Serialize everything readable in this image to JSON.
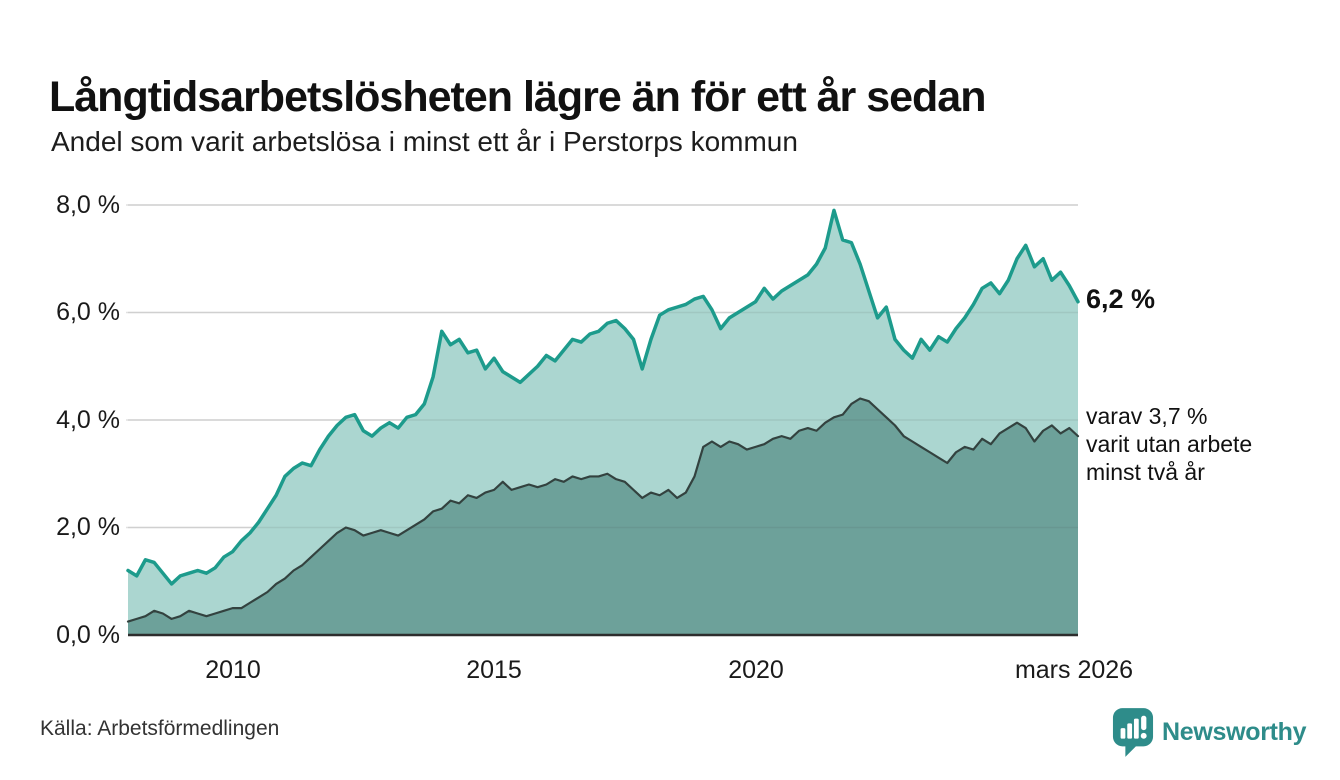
{
  "header": {
    "title": "Långtidsarbetslösheten lägre än för ett år sedan",
    "subtitle": "Andel som varit arbetslösa i minst ett år i Perstorps kommun"
  },
  "annotations": {
    "end_value_main": "6,2 %",
    "secondary_line1": "varav 3,7 %",
    "secondary_line2": "varit utan arbete",
    "secondary_line3": "minst två år"
  },
  "footer": {
    "source": "Källa: Arbetsförmedlingen",
    "logo_text": "Newsworthy"
  },
  "chart_data": {
    "type": "area",
    "title": "Långtidsarbetslösheten lägre än för ett år sedan",
    "subtitle": "Andel som varit arbetslösa i minst ett år i Perstorps kommun",
    "unit": "%",
    "x_start": "2008-01",
    "x_end": "2026-03",
    "interval_months": 2,
    "ylim": [
      0,
      8.4
    ],
    "grid": true,
    "legend_position": "none",
    "grid_color": "#e0e0e0",
    "axis_color": "#2d2d2d",
    "yticks": [
      {
        "value": 8,
        "label": "8,0 %"
      },
      {
        "value": 6,
        "label": "6,0 %"
      },
      {
        "value": 4,
        "label": "4,0 %"
      },
      {
        "value": 2,
        "label": "2,0 %"
      },
      {
        "value": 0,
        "label": "0,0 %"
      }
    ],
    "xticks": [
      {
        "year": 2010.0,
        "label": "2010"
      },
      {
        "year": 2015.0,
        "label": "2015"
      },
      {
        "year": 2020.0,
        "label": "2020"
      },
      {
        "year": 2026.17,
        "label": "mars 2026"
      }
    ],
    "series": [
      {
        "name": "Arbetslösa minst ett år",
        "end_value": 6.2,
        "end_label": "6,2 %",
        "line_color": "#1d9b8c",
        "fill_color": "#abd6d0",
        "line_width": 3.5,
        "values": [
          1.2,
          1.1,
          1.4,
          1.35,
          1.15,
          0.95,
          1.1,
          1.15,
          1.2,
          1.15,
          1.25,
          1.45,
          1.55,
          1.75,
          1.9,
          2.1,
          2.35,
          2.6,
          2.95,
          3.1,
          3.2,
          3.15,
          3.45,
          3.7,
          3.9,
          4.05,
          4.1,
          3.8,
          3.7,
          3.85,
          3.95,
          3.85,
          4.05,
          4.1,
          4.3,
          4.8,
          5.65,
          5.4,
          5.5,
          5.25,
          5.3,
          4.95,
          5.15,
          4.9,
          4.8,
          4.7,
          4.85,
          5.0,
          5.2,
          5.1,
          5.3,
          5.5,
          5.45,
          5.6,
          5.65,
          5.8,
          5.85,
          5.7,
          5.5,
          4.95,
          5.5,
          5.95,
          6.05,
          6.1,
          6.15,
          6.25,
          6.3,
          6.05,
          5.7,
          5.9,
          6.0,
          6.1,
          6.2,
          6.45,
          6.25,
          6.4,
          6.5,
          6.6,
          6.7,
          6.9,
          7.2,
          7.9,
          7.35,
          7.3,
          6.9,
          6.4,
          5.9,
          6.1,
          5.5,
          5.3,
          5.15,
          5.5,
          5.3,
          5.55,
          5.45,
          5.7,
          5.9,
          6.15,
          6.45,
          6.55,
          6.35,
          6.6,
          7.0,
          7.25,
          6.85,
          7.0,
          6.6,
          6.75,
          6.5,
          6.2
        ]
      },
      {
        "name": "varav utan arbete minst två år",
        "end_value": 3.7,
        "end_label": "varav 3,7 % varit utan arbete minst två år",
        "line_color": "#33423f",
        "fill_color": "#6da19a",
        "line_width": 2.2,
        "values": [
          0.25,
          0.3,
          0.35,
          0.45,
          0.4,
          0.3,
          0.35,
          0.45,
          0.4,
          0.35,
          0.4,
          0.45,
          0.5,
          0.5,
          0.6,
          0.7,
          0.8,
          0.95,
          1.05,
          1.2,
          1.3,
          1.45,
          1.6,
          1.75,
          1.9,
          2.0,
          1.95,
          1.85,
          1.9,
          1.95,
          1.9,
          1.85,
          1.95,
          2.05,
          2.15,
          2.3,
          2.35,
          2.5,
          2.45,
          2.6,
          2.55,
          2.65,
          2.7,
          2.85,
          2.7,
          2.75,
          2.8,
          2.75,
          2.8,
          2.9,
          2.85,
          2.95,
          2.9,
          2.95,
          2.95,
          3.0,
          2.9,
          2.85,
          2.7,
          2.55,
          2.65,
          2.6,
          2.7,
          2.55,
          2.65,
          2.95,
          3.5,
          3.6,
          3.5,
          3.6,
          3.55,
          3.45,
          3.5,
          3.55,
          3.65,
          3.7,
          3.65,
          3.8,
          3.85,
          3.8,
          3.95,
          4.05,
          4.1,
          4.3,
          4.4,
          4.35,
          4.2,
          4.05,
          3.9,
          3.7,
          3.6,
          3.5,
          3.4,
          3.3,
          3.2,
          3.4,
          3.5,
          3.45,
          3.65,
          3.55,
          3.75,
          3.85,
          3.95,
          3.85,
          3.6,
          3.8,
          3.9,
          3.75,
          3.85,
          3.7
        ]
      }
    ],
    "brand_color": "#2e8c8a"
  }
}
